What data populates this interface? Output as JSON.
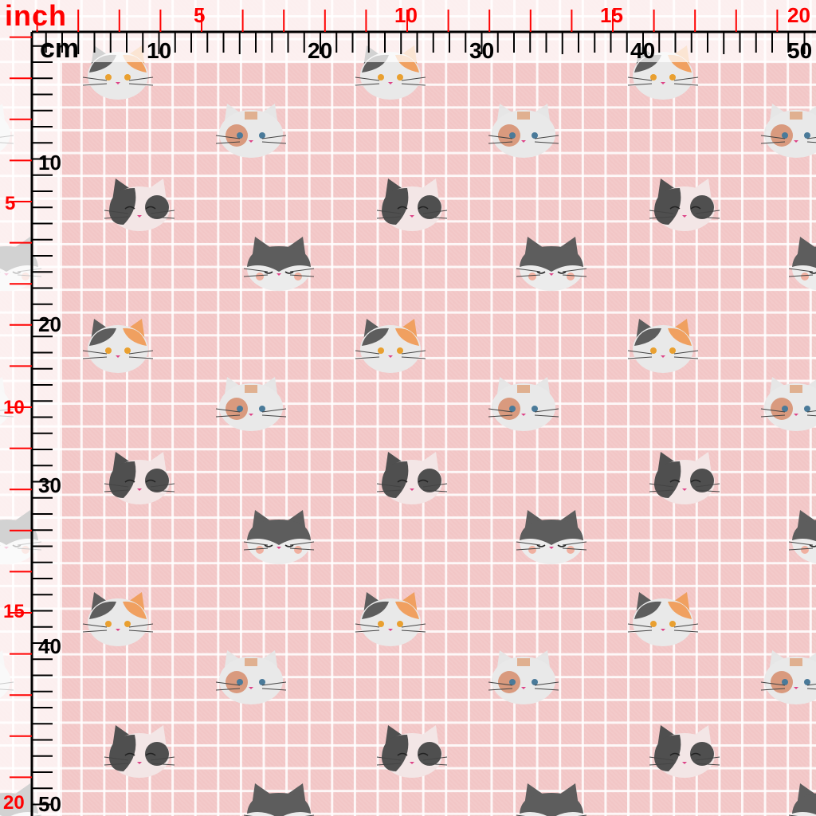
{
  "rulers": {
    "inch_unit": "inch",
    "cm_unit": "cm",
    "inch_color": "#ff0000",
    "cm_color": "#000000",
    "top_inch_labels": [
      "5",
      "10",
      "15",
      "20"
    ],
    "top_cm_labels": [
      "10",
      "20",
      "30",
      "40",
      "50"
    ],
    "left_inch_labels": [
      "5",
      "10",
      "15",
      "20"
    ],
    "left_cm_labels": [
      "10",
      "20",
      "30",
      "40",
      "50"
    ]
  },
  "fabric": {
    "background_color": "#f2c6c6",
    "grid_color": "#ffffff",
    "motifs": [
      "calico-cat-face-icon",
      "orange-patch-cat-face-icon",
      "sleeping-dark-cat-face-icon",
      "smiling-grey-cat-face-icon"
    ]
  }
}
